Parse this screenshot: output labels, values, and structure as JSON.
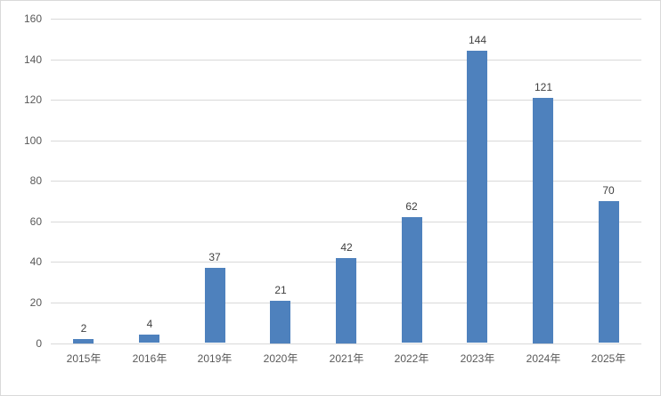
{
  "chart_data": {
    "type": "bar",
    "categories": [
      "2015年",
      "2016年",
      "2019年",
      "2020年",
      "2021年",
      "2022年",
      "2023年",
      "2024年",
      "2025年"
    ],
    "values": [
      2,
      4,
      37,
      21,
      42,
      62,
      144,
      121,
      70
    ],
    "data_labels": [
      "2",
      "4",
      "37",
      "21",
      "42",
      "62",
      "144",
      "121",
      "70"
    ],
    "title": "",
    "xlabel": "",
    "ylabel": "",
    "ylim": [
      0,
      160
    ],
    "yticks": [
      0,
      20,
      40,
      60,
      80,
      100,
      120,
      140,
      160
    ],
    "grid": true,
    "legend": "none",
    "colors": {
      "bar_fill": "#4E81BD",
      "gridline": "#D9D9D9",
      "axis_line": "#D9D9D9",
      "axis_label_text": "#595959",
      "data_label_text": "#404040",
      "chart_border": "#D9D9D9",
      "background": "#FFFFFF"
    }
  }
}
